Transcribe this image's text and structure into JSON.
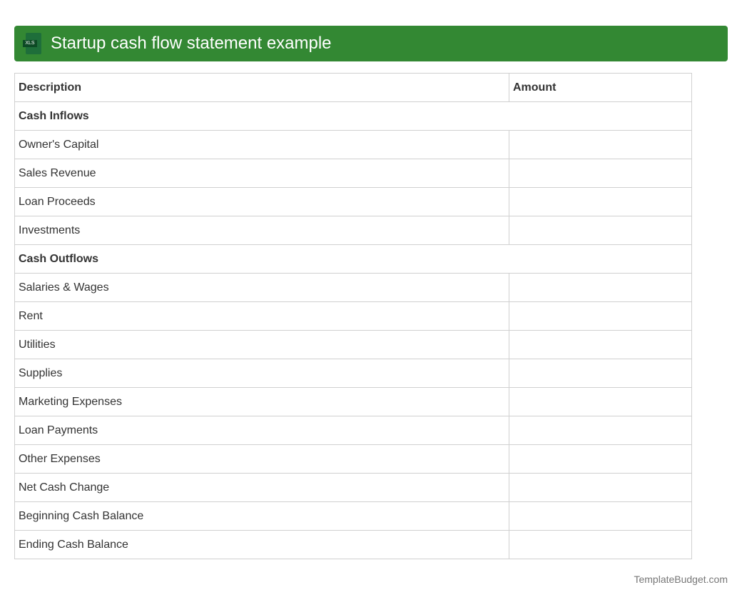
{
  "title": "Startup cash flow statement example",
  "icon": "xls-file-icon",
  "icon_label": "XLS",
  "headers": [
    "Description",
    "Amount"
  ],
  "sections": [
    {
      "label": "Cash Inflows",
      "rows": [
        "Owner's Capital",
        "Sales Revenue",
        "Loan Proceeds",
        "Investments"
      ]
    },
    {
      "label": "Cash Outflows",
      "rows": [
        "Salaries & Wages",
        "Rent",
        "Utilities",
        "Supplies",
        "Marketing Expenses",
        "Loan Payments",
        "Other Expenses",
        "Net Cash Change",
        "Beginning Cash Balance",
        "Ending Cash Balance"
      ]
    }
  ],
  "footer": "TemplateBudget.com",
  "accent": "#338833"
}
